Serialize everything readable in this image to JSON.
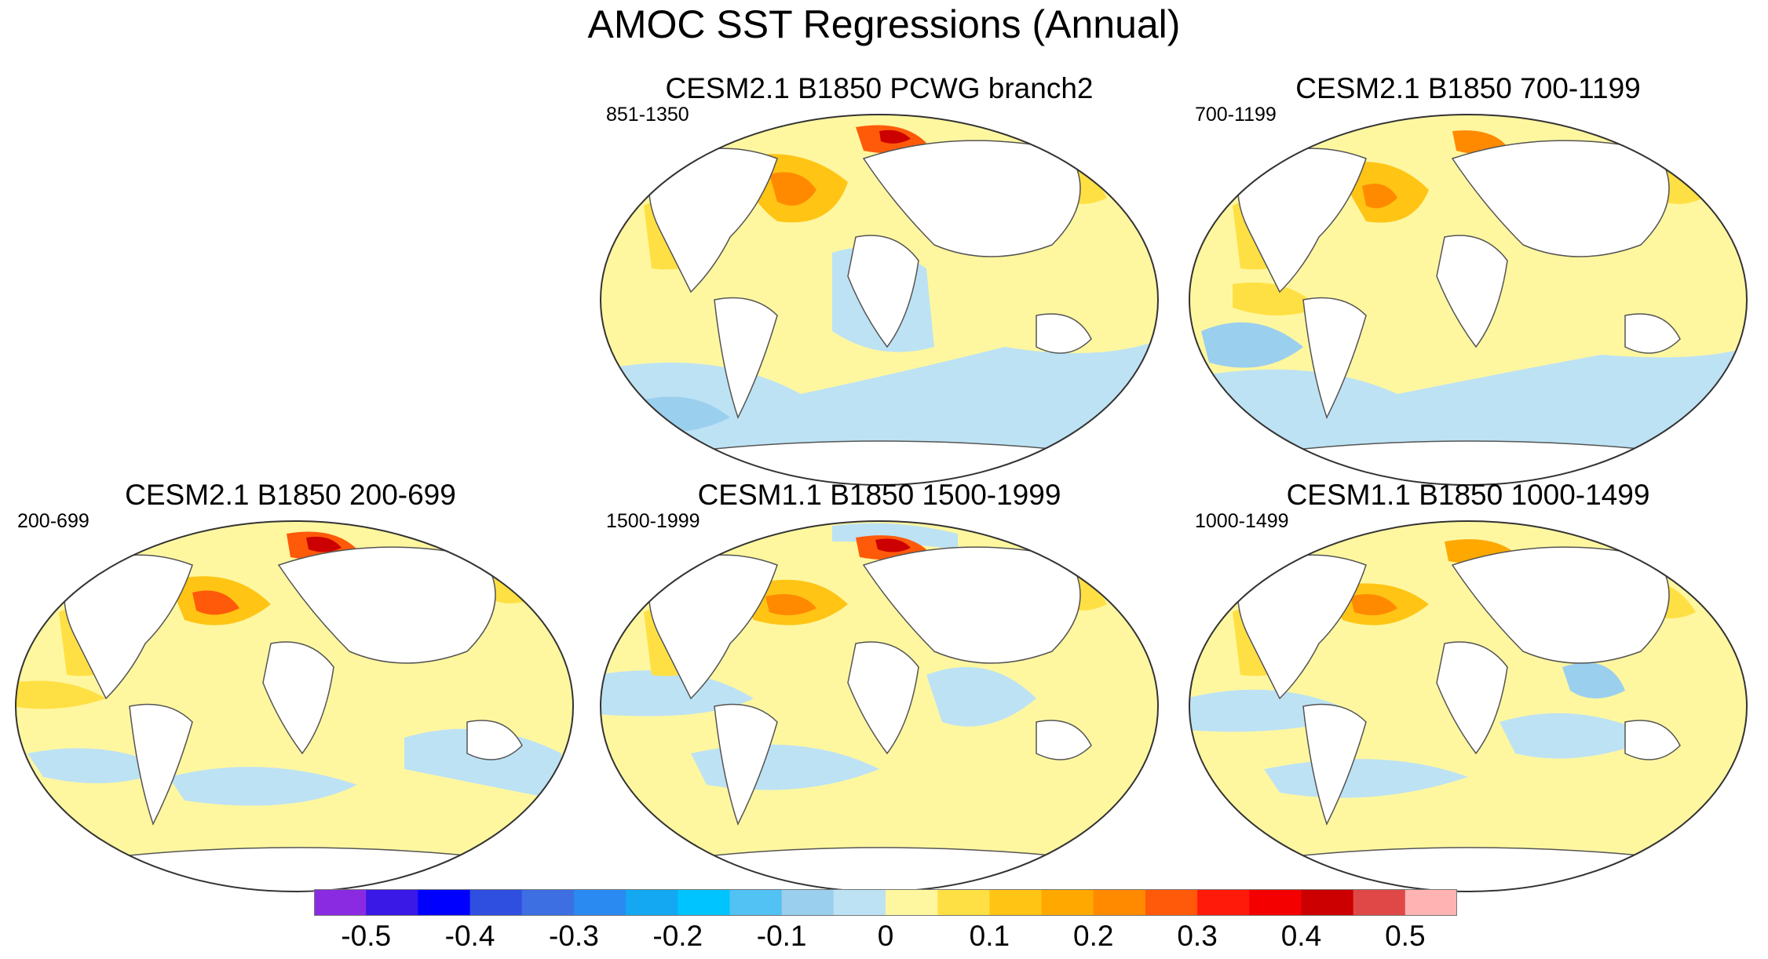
{
  "title": "AMOC SST Regressions (Annual)",
  "panels": [
    {
      "id": "p1",
      "title": "CESM2.1 B1850 PCWG branch2",
      "period": "851-1350"
    },
    {
      "id": "p2",
      "title": "CESM2.1 B1850 700-1199",
      "period": "700-1199"
    },
    {
      "id": "p3",
      "title": "CESM2.1 B1850 200-699",
      "period": "200-699"
    },
    {
      "id": "p4",
      "title": "CESM1.1 B1850 1500-1999",
      "period": "1500-1999"
    },
    {
      "id": "p5",
      "title": "CESM1.1 B1850 1000-1499",
      "period": "1000-1499"
    }
  ],
  "colorbar": {
    "colors": [
      "#8a2be2",
      "#3a18e6",
      "#0000ff",
      "#2e4fe0",
      "#3d6fe3",
      "#2a8af2",
      "#14a7f2",
      "#00c4ff",
      "#52c1f3",
      "#9bcfee",
      "#bde2f4",
      "#fff7a0",
      "#ffe044",
      "#ffc414",
      "#ffa800",
      "#ff8a00",
      "#ff5a0a",
      "#ff1a0a",
      "#f50000",
      "#cc0000",
      "#e04848",
      "#ffb3b3"
    ],
    "labels": [
      "-0.5",
      "-0.4",
      "-0.3",
      "-0.2",
      "-0.1",
      "0",
      "0.1",
      "0.2",
      "0.3",
      "0.4",
      "0.5"
    ]
  }
}
